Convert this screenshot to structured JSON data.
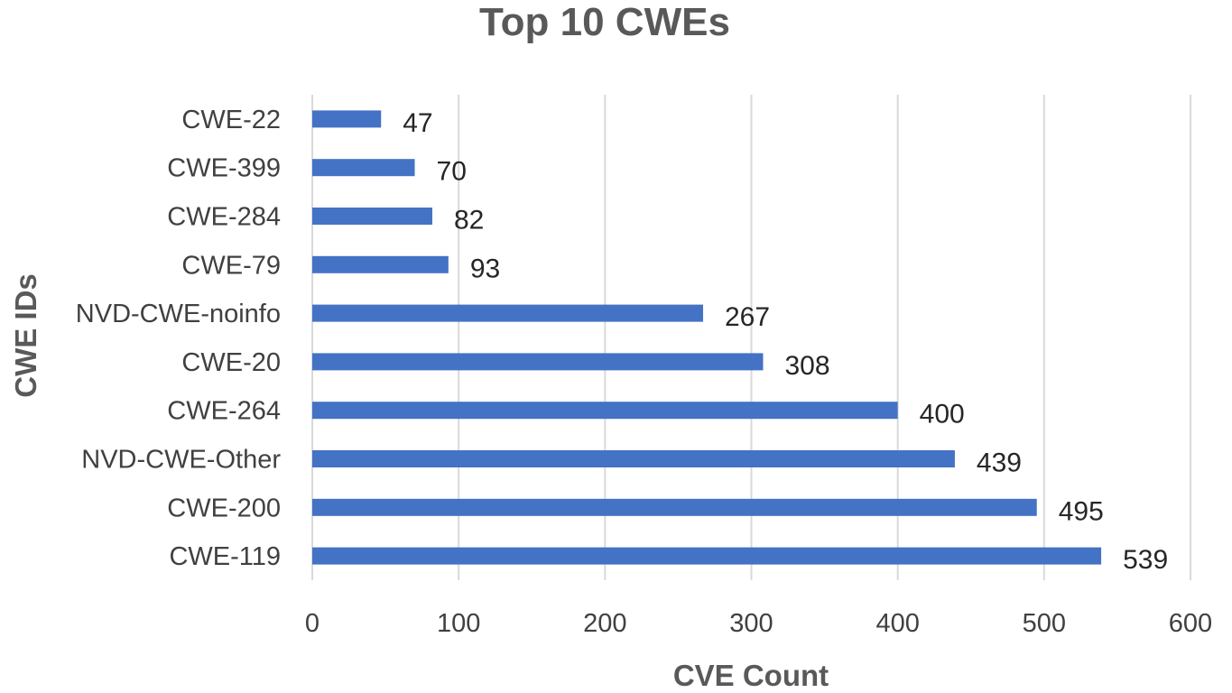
{
  "chart_data": {
    "type": "bar",
    "orientation": "horizontal",
    "title": "Top 10 CWEs",
    "xlabel": "CVE Count",
    "ylabel": "CWE IDs",
    "categories": [
      "CWE-22",
      "CWE-399",
      "CWE-284",
      "CWE-79",
      "NVD-CWE-noinfo",
      "CWE-20",
      "CWE-264",
      "NVD-CWE-Other",
      "CWE-200",
      "CWE-119"
    ],
    "values": [
      47,
      70,
      82,
      93,
      267,
      308,
      400,
      439,
      495,
      539
    ],
    "xlim": [
      0,
      600
    ],
    "xticks": [
      "0",
      "100",
      "200",
      "300",
      "400",
      "500",
      "600"
    ],
    "grid": true,
    "legend": "none",
    "bar_color": "#4472C4"
  }
}
